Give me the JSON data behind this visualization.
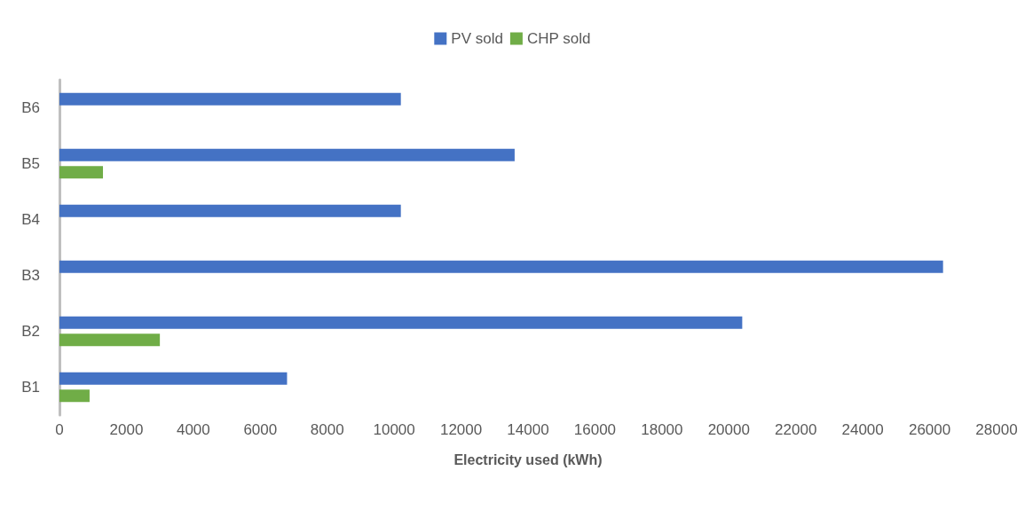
{
  "chart_data": {
    "type": "bar",
    "orientation": "horizontal",
    "xlabel": "Electricity used (kWh)",
    "categories": [
      "B6",
      "B5",
      "B4",
      "B3",
      "B2",
      "B1"
    ],
    "series": [
      {
        "name": "PV sold",
        "color": "#4472c4",
        "values": [
          10200,
          13600,
          10200,
          26400,
          20400,
          6800
        ]
      },
      {
        "name": "CHP sold",
        "color": "#70ad47",
        "values": [
          null,
          1300,
          null,
          null,
          3000,
          900
        ]
      }
    ],
    "xlim": [
      0,
      28000
    ],
    "xticks": [
      0,
      2000,
      4000,
      6000,
      8000,
      10000,
      12000,
      14000,
      16000,
      18000,
      20000,
      22000,
      24000,
      26000,
      28000
    ],
    "grid": false,
    "legend": "top"
  }
}
